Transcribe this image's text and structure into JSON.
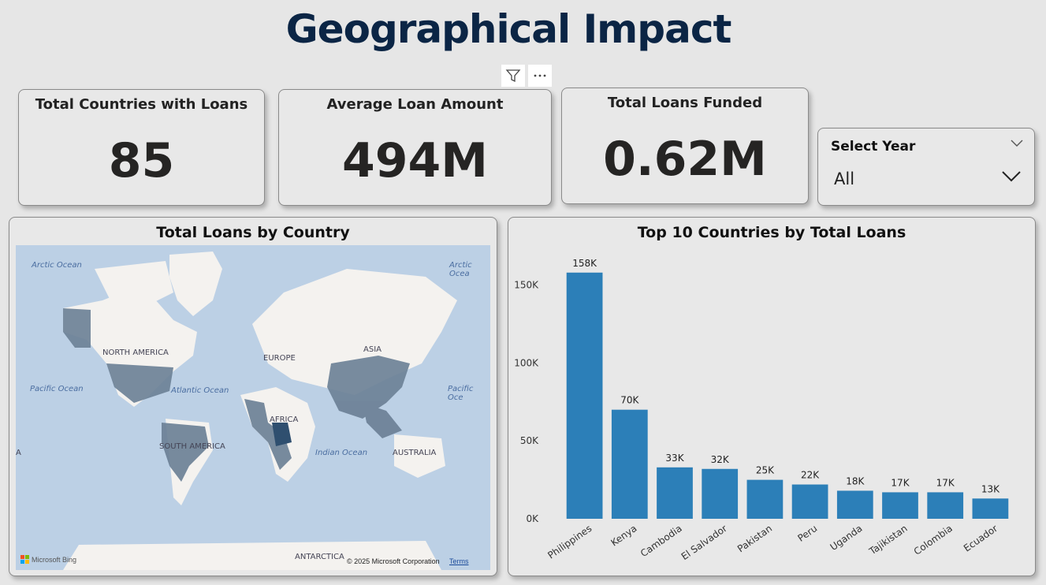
{
  "page": {
    "title": "Geographical Impact"
  },
  "kpis": [
    {
      "label": "Total Countries with Loans",
      "value": "85"
    },
    {
      "label": "Average Loan Amount",
      "value": "494M"
    },
    {
      "label": "Total Loans Funded",
      "value": "0.62M"
    }
  ],
  "slicer": {
    "label": "Select Year",
    "value": "All"
  },
  "map": {
    "title": "Total Loans by Country",
    "labels": {
      "arctic_left": "Arctic Ocean",
      "arctic_right": "Arctic Ocea",
      "north_america": "NORTH AMERICA",
      "europe": "EUROPE",
      "asia": "ASIA",
      "africa": "AFRICA",
      "pacific_left": "Pacific Ocean",
      "pacific_right": "Pacific Oce",
      "atlantic": "Atlantic Ocean",
      "south_america": "SOUTH AMERICA",
      "indian": "Indian Ocean",
      "australia": "AUSTRALIA",
      "antarctica": "ANTARCTICA",
      "edge_a": "A"
    },
    "attribution": "Microsoft Bing",
    "copyright": "© 2025 Microsoft Corporation",
    "terms": "Terms"
  },
  "chart_data": {
    "type": "bar",
    "title": "Top 10 Countries by Total Loans",
    "categories": [
      "Philippines",
      "Kenya",
      "Cambodia",
      "El Salvador",
      "Pakistan",
      "Peru",
      "Uganda",
      "Tajikistan",
      "Colombia",
      "Ecuador"
    ],
    "values": [
      158000,
      70000,
      33000,
      32000,
      25000,
      22000,
      18000,
      17000,
      17000,
      13000
    ],
    "data_labels": [
      "158K",
      "70K",
      "33K",
      "32K",
      "25K",
      "22K",
      "18K",
      "17K",
      "17K",
      "13K"
    ],
    "ylim": [
      0,
      168000
    ],
    "yticks": [
      0,
      50000,
      100000,
      150000
    ],
    "ytick_labels": [
      "0K",
      "50K",
      "100K",
      "150K"
    ],
    "xlabel": "",
    "ylabel": "",
    "grid": false,
    "bar_color": "#2c7fb8"
  },
  "colors": {
    "title": "#0b2545",
    "map_country": "#6a7f95",
    "map_land": "#f4f2ef",
    "map_ocean": "#bcd0e5"
  }
}
